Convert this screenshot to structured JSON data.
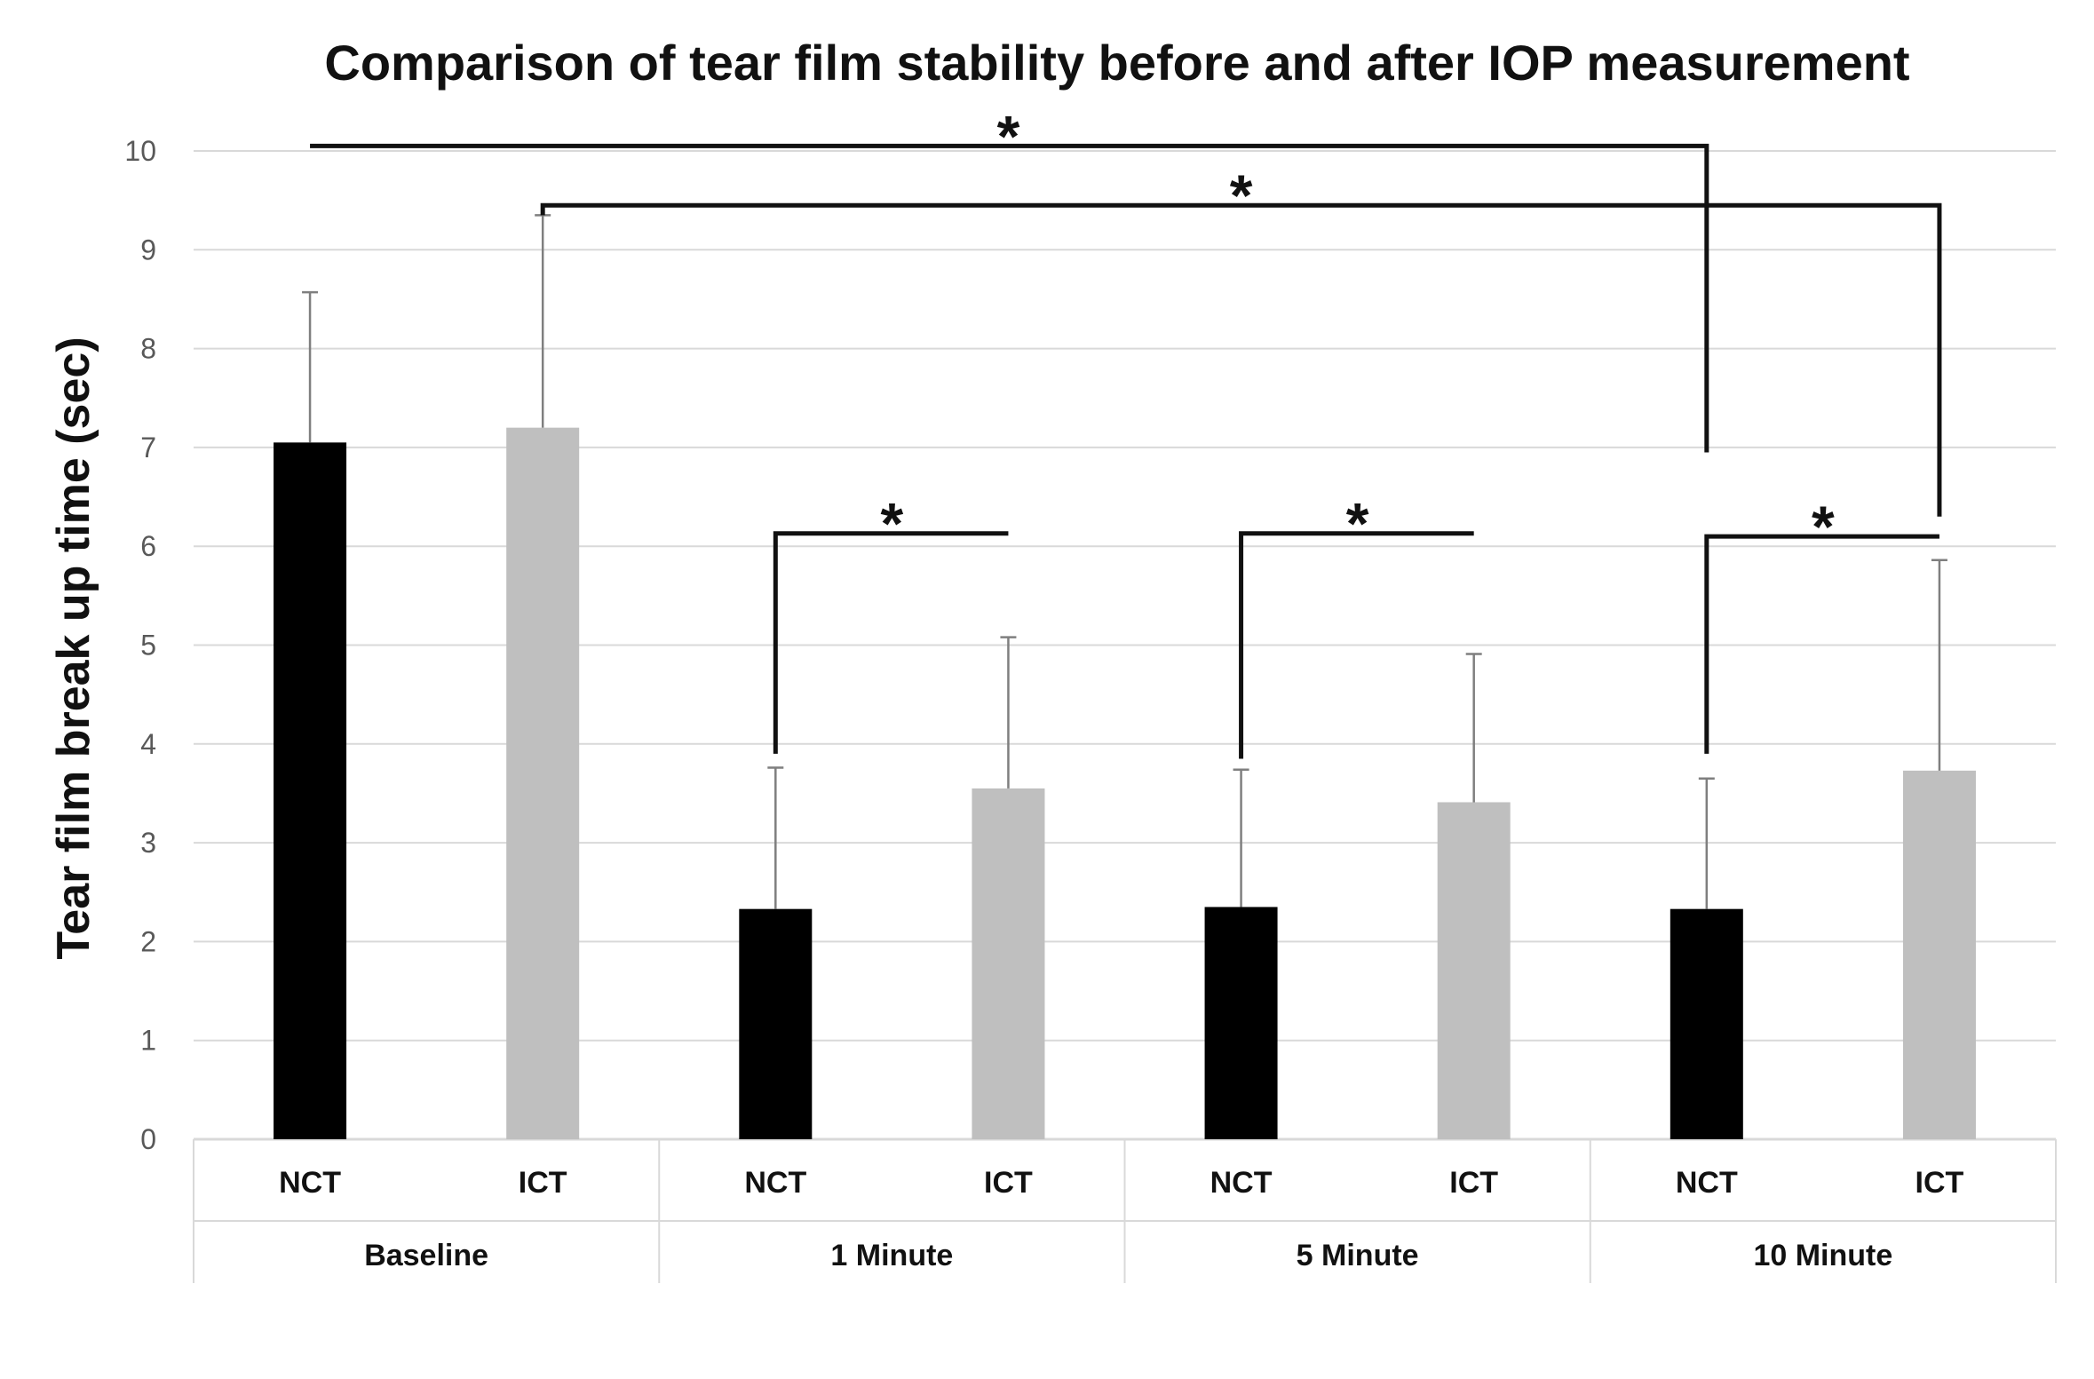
{
  "chart_data": {
    "type": "bar",
    "title": "Comparison of tear film stability before and after IOP measurement",
    "xlabel": "",
    "ylabel": "Tear film break up time (sec)",
    "ylim": [
      0,
      10
    ],
    "yticks": [
      0,
      1,
      2,
      3,
      4,
      5,
      6,
      7,
      8,
      9,
      10
    ],
    "grid": true,
    "groups": [
      "Baseline",
      "1 Minute",
      "5 Minute",
      "10 Minute"
    ],
    "subcategories": [
      "NCT",
      "ICT"
    ],
    "series": [
      {
        "name": "NCT",
        "color": "#000000",
        "values": [
          7.05,
          2.33,
          2.35,
          2.33
        ],
        "error_upper": [
          8.57,
          3.76,
          3.74,
          3.65
        ]
      },
      {
        "name": "ICT",
        "color": "#bfbfbf",
        "values": [
          7.2,
          3.55,
          3.41,
          3.73
        ],
        "error_upper": [
          9.35,
          5.08,
          4.91,
          5.86
        ]
      }
    ],
    "error_bar_color": "#7f7f7f",
    "significance": [
      {
        "label": "*",
        "from": {
          "group": 0,
          "bar": 0
        },
        "to": {
          "group": 3,
          "bar": 0
        },
        "level": 10.05,
        "left_end": 10.05,
        "right_end": 6.95
      },
      {
        "label": "*",
        "from": {
          "group": 0,
          "bar": 1
        },
        "to": {
          "group": 3,
          "bar": 1
        },
        "level": 9.45,
        "left_end": 9.35,
        "right_end": 6.3
      },
      {
        "label": "*",
        "from": {
          "group": 1,
          "bar": 0
        },
        "to": {
          "group": 1,
          "bar": 1
        },
        "level": 6.13,
        "left_end": 3.9,
        "right_end": 6.13
      },
      {
        "label": "*",
        "from": {
          "group": 2,
          "bar": 0
        },
        "to": {
          "group": 2,
          "bar": 1
        },
        "level": 6.13,
        "left_end": 3.85,
        "right_end": 6.13
      },
      {
        "label": "*",
        "from": {
          "group": 3,
          "bar": 0
        },
        "to": {
          "group": 3,
          "bar": 1
        },
        "level": 6.1,
        "left_end": 3.9,
        "right_end": 6.1
      }
    ]
  }
}
